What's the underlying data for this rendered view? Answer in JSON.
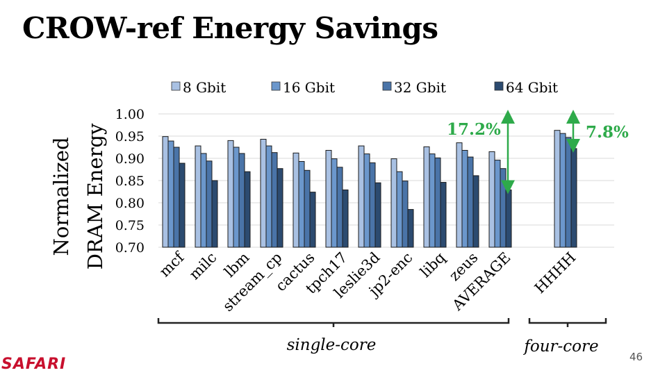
{
  "slide": {
    "title": "CROW-ref Energy Savings",
    "logo": "SAFARI",
    "page_number": "46"
  },
  "colors": {
    "series": [
      "#a9c1e3",
      "#6b97cc",
      "#4a74a8",
      "#2c4b70"
    ],
    "annotation_arrow": "#2eaa4a",
    "annotation_text": "#2eaa4a"
  },
  "chart_data": {
    "type": "bar",
    "ylabel_line1": "Normalized",
    "ylabel_line2": "DRAM Energy",
    "ylim": [
      0.7,
      1.0
    ],
    "yticks": [
      "1.00",
      "0.95",
      "0.90",
      "0.85",
      "0.80",
      "0.75",
      "0.70"
    ],
    "ytick_values": [
      1.0,
      0.95,
      0.9,
      0.85,
      0.8,
      0.75,
      0.7
    ],
    "grid": true,
    "legend_position": "top",
    "categories": [
      "mcf",
      "milc",
      "lbm",
      "stream_cp",
      "cactus",
      "tpch17",
      "leslie3d",
      "jp2-enc",
      "libq",
      "zeus",
      "AVERAGE",
      "",
      "HHHH"
    ],
    "series": [
      {
        "name": "8 Gbit",
        "values": [
          0.949,
          0.928,
          0.94,
          0.943,
          0.912,
          0.918,
          0.928,
          0.899,
          0.926,
          0.935,
          0.915,
          null,
          0.963
        ]
      },
      {
        "name": "16 Gbit",
        "values": [
          0.939,
          0.911,
          0.925,
          0.928,
          0.893,
          0.899,
          0.91,
          0.87,
          0.91,
          0.918,
          0.896,
          null,
          0.956
        ]
      },
      {
        "name": "32 Gbit",
        "values": [
          0.925,
          0.894,
          0.911,
          0.913,
          0.873,
          0.88,
          0.89,
          0.849,
          0.901,
          0.903,
          0.877,
          null,
          0.947
        ]
      },
      {
        "name": "64 Gbit",
        "values": [
          0.889,
          0.85,
          0.87,
          0.877,
          0.824,
          0.829,
          0.845,
          0.785,
          0.846,
          0.861,
          0.829,
          null,
          0.922
        ]
      }
    ],
    "annotations": [
      {
        "text": "17.2%",
        "category": "AVERAGE",
        "from": 1.0,
        "to": 0.829
      },
      {
        "text": "7.8%",
        "category": "HHHH",
        "from": 1.0,
        "to": 0.922
      }
    ],
    "groups": [
      {
        "label": "single-core",
        "from": "mcf",
        "to": "AVERAGE"
      },
      {
        "label": "four-core",
        "from": "HHHH",
        "to": "HHHH"
      }
    ]
  }
}
